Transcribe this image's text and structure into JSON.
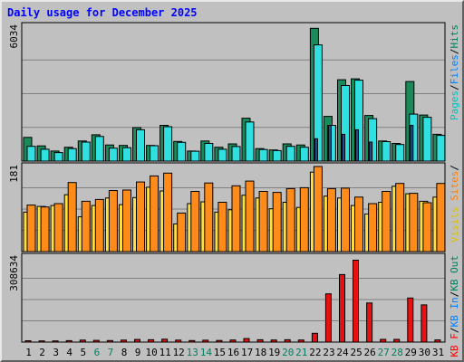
{
  "chart_data": {
    "title": "Daily usage for December 2025",
    "type": "bar",
    "x": [
      1,
      2,
      3,
      4,
      5,
      6,
      7,
      8,
      9,
      10,
      11,
      12,
      13,
      14,
      15,
      16,
      17,
      18,
      19,
      20,
      21,
      22,
      23,
      24,
      25,
      26,
      27,
      28,
      29,
      30,
      31
    ],
    "x_labels": [
      "1",
      "2",
      "3",
      "4",
      "5",
      "6",
      "7",
      "8",
      "9",
      "10",
      "11",
      "12",
      "13",
      "14",
      "15",
      "16",
      "17",
      "18",
      "19",
      "20",
      "21",
      "22",
      "23",
      "24",
      "25",
      "26",
      "27",
      "28",
      "29",
      "30",
      "31"
    ],
    "weekend_days": [
      6,
      7,
      13,
      14,
      20,
      21,
      27,
      28
    ],
    "panels": [
      {
        "y_max_label": "6034",
        "y_max": 6034,
        "right_label_parts": [
          {
            "text": "Pages",
            "color": "#00c0c0"
          },
          {
            "text": "/",
            "color": "#000000"
          },
          {
            "text": "Files",
            "color": "#0080ff"
          },
          {
            "text": "/",
            "color": "#000000"
          },
          {
            "text": "Hits",
            "color": "#008060"
          }
        ],
        "series": [
          {
            "name": "Hits",
            "color": "#1a8a5a",
            "values": [
              1060,
              680,
              450,
              620,
              900,
              1180,
              720,
              700,
              1500,
              700,
              1600,
              880,
              450,
              900,
              620,
              770,
              1920,
              560,
              500,
              770,
              720,
              5940,
              2000,
              3640,
              3680,
              2040,
              900,
              790,
              3560,
              2060,
              1200
            ]
          },
          {
            "name": "Files",
            "color": "#30e0e0",
            "values": [
              660,
              530,
              380,
              560,
              850,
              1100,
              580,
              600,
              1400,
              690,
              1540,
              840,
              440,
              790,
              530,
              650,
              1750,
              520,
              470,
              660,
              620,
              5200,
              1600,
              3380,
              3620,
              1900,
              870,
              740,
              2100,
              1960,
              1150
            ]
          },
          {
            "name": "Pages",
            "color": "#1f4f8f",
            "values": [
              0,
              0,
              0,
              0,
              0,
              0,
              0,
              0,
              0,
              0,
              0,
              0,
              0,
              0,
              0,
              0,
              0,
              0,
              0,
              0,
              0,
              1000,
              1600,
              1200,
              1400,
              850,
              0,
              0,
              1600,
              0,
              0
            ]
          }
        ]
      },
      {
        "y_max_label": "181",
        "y_max": 181,
        "right_label_parts": [
          {
            "text": "Visits",
            "color": "#e0c000"
          },
          {
            "text": " Sites",
            "color": "#ff8000"
          },
          {
            "text": "/",
            "color": "#000000"
          }
        ],
        "series": [
          {
            "name": "Visits",
            "color": "#ffe040",
            "values": [
              84,
              96,
              98,
              121,
              74,
              98,
              114,
              100,
              115,
              137,
              129,
              59,
              102,
              106,
              84,
              89,
              120,
              114,
              91,
              105,
              94,
              169,
              118,
              114,
              98,
              80,
              105,
              139,
              123,
              107,
              116
            ]
          },
          {
            "name": "Sites",
            "color": "#ff8c1a",
            "values": [
              99,
              95,
              102,
              147,
              107,
              111,
              130,
              131,
              148,
              161,
              167,
              82,
              128,
              146,
              105,
              140,
              150,
              128,
              126,
              134,
              136,
              181,
              134,
              135,
              116,
              102,
              128,
              145,
              124,
              104,
              145
            ]
          }
        ]
      },
      {
        "y_max_label": "308634",
        "y_max": 308634,
        "right_label_parts": [
          {
            "text": "KB F",
            "color": "#ff0000"
          },
          {
            "text": "/",
            "color": "#000000"
          },
          {
            "text": "KB In",
            "color": "#0080ff"
          },
          {
            "text": "/",
            "color": "#000000"
          },
          {
            "text": "KB Out",
            "color": "#008060"
          }
        ],
        "series": [
          {
            "name": "KB F",
            "color": "#e81010",
            "values": [
              5000,
              4200,
              4200,
              5300,
              7300,
              6200,
              5600,
              7100,
              9400,
              8500,
              10500,
              7300,
              5700,
              6900,
              5900,
              7500,
              12700,
              8600,
              7500,
              8700,
              7500,
              32000,
              175000,
              245000,
              297000,
              142000,
              9900,
              9700,
              160000,
              135000,
              8000
            ]
          }
        ]
      }
    ]
  }
}
